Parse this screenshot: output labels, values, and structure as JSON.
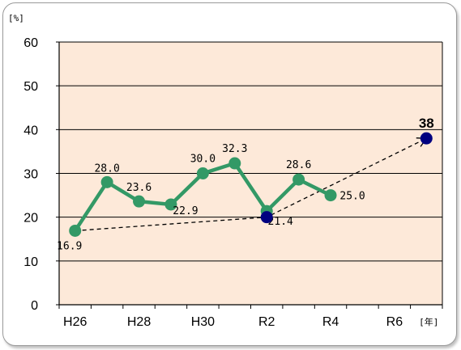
{
  "chart_data": {
    "type": "line",
    "y_unit": "[%]",
    "x_unit": "[年]",
    "ylim": [
      0,
      60
    ],
    "yticks": [
      0,
      10,
      20,
      30,
      40,
      50,
      60
    ],
    "x_positions": [
      "H26",
      "H27",
      "H28",
      "H29",
      "H30",
      "R1",
      "R2",
      "R3",
      "R4",
      "R5",
      "R6",
      "R7"
    ],
    "x_tick_labels": [
      "H26",
      "H28",
      "H30",
      "R2",
      "R4",
      "R6"
    ],
    "grid": true,
    "series": [
      {
        "color": "#339966",
        "x": [
          "H26",
          "H27",
          "H28",
          "H29",
          "H30",
          "R1",
          "R2",
          "R3",
          "R4"
        ],
        "values": [
          16.9,
          28.0,
          23.6,
          22.9,
          30.0,
          32.3,
          21.4,
          28.6,
          25.0
        ],
        "labels": [
          "16.9",
          "28.0",
          "23.6",
          "22.9",
          "30.0",
          "32.3",
          "21.4",
          "28.6",
          "25.0"
        ]
      }
    ],
    "markers": [
      {
        "x": "R2",
        "value": 20,
        "color": "#000080"
      },
      {
        "x": "R7",
        "value": 38,
        "color": "#000080",
        "label": "38"
      }
    ],
    "trend_arrow": {
      "from": {
        "x": "H26",
        "value": 16.9
      },
      "via": {
        "x": "R2",
        "value": 20
      },
      "to": {
        "x": "R7",
        "value": 38
      }
    },
    "plot_background": "#fde9d9"
  }
}
